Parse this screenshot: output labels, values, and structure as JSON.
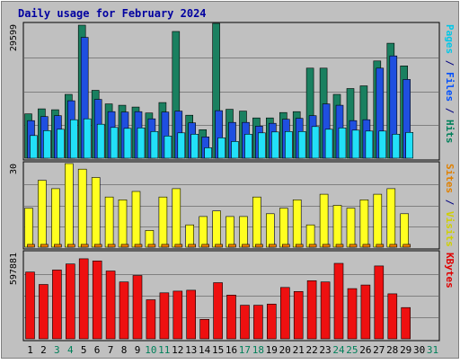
{
  "chart_data": {
    "type": "bar",
    "title": "Daily usage for February 2024",
    "x": [
      "1",
      "2",
      "3",
      "4",
      "5",
      "6",
      "7",
      "8",
      "9",
      "10",
      "11",
      "12",
      "13",
      "14",
      "15",
      "16",
      "17",
      "18",
      "19",
      "20",
      "21",
      "22",
      "23",
      "24",
      "25",
      "26",
      "27",
      "28",
      "29",
      "30",
      "31"
    ],
    "weekend_days": [
      3,
      4,
      10,
      11,
      17,
      18,
      24,
      25,
      31
    ],
    "panels": [
      {
        "id": "hits-files-pages",
        "ymax": 29599,
        "ymax_label": "29599",
        "side_label": [
          {
            "text": "Pages",
            "color": "#00c8e8"
          },
          {
            "text": " / ",
            "color": "#000080"
          },
          {
            "text": "Files",
            "color": "#0050ff"
          },
          {
            "text": " / ",
            "color": "#000080"
          },
          {
            "text": "Hits",
            "color": "#00805a"
          }
        ],
        "series": [
          {
            "name": "Hits",
            "color": "#1a8060",
            "values": [
              9800,
              10900,
              10700,
              14100,
              29400,
              15000,
              12000,
              11700,
              11300,
              10000,
              12300,
              28000,
              9500,
              6300,
              29800,
              10800,
              10400,
              8900,
              8900,
              10100,
              10300,
              19900,
              19900,
              14100,
              15400,
              16000,
              21500,
              25400,
              20400,
              0,
              0
            ]
          },
          {
            "name": "Files",
            "color": "#1f4fe0",
            "values": [
              8300,
              9200,
              9400,
              12700,
              26700,
              13000,
              10300,
              10200,
              10300,
              8700,
              10200,
              10400,
              7800,
              4700,
              10500,
              7900,
              7900,
              7100,
              7700,
              8600,
              8800,
              9400,
              12000,
              11700,
              8300,
              8500,
              19900,
              22600,
              17400,
              0,
              0
            ]
          },
          {
            "name": "Pages",
            "color": "#22e0f8",
            "values": [
              5000,
              6100,
              6400,
              8500,
              8700,
              7500,
              6800,
              6600,
              6700,
              5900,
              4900,
              5600,
              5300,
              2300,
              4500,
              3700,
              5300,
              5600,
              5800,
              5900,
              5900,
              7000,
              6400,
              6700,
              6200,
              6000,
              6000,
              5300,
              5700,
              0,
              0
            ]
          }
        ]
      },
      {
        "id": "visits-sites",
        "ymax": 30,
        "ymax_label": "30",
        "side_label": [
          {
            "text": "Sites",
            "color": "#e08000"
          },
          {
            "text": " / ",
            "color": "#000080"
          },
          {
            "text": "Visits",
            "color": "#d0d000"
          }
        ],
        "series": [
          {
            "name": "Visits",
            "color": "#ffff20",
            "values": [
              14,
              24,
              21,
              30,
              28,
              25,
              18,
              17,
              20,
              6,
              18,
              21,
              8,
              11,
              13,
              11,
              11,
              18,
              12,
              14,
              17,
              8,
              19,
              15,
              14,
              17,
              19,
              21,
              12,
              0,
              0
            ]
          },
          {
            "name": "Sites",
            "color": "#f08000",
            "values": [
              1,
              1,
              1,
              1,
              1,
              1,
              1,
              1,
              1,
              1,
              1,
              1,
              1,
              1,
              1,
              1,
              1,
              1,
              1,
              1,
              1,
              1,
              1,
              1,
              1,
              1,
              1,
              1,
              1,
              0,
              0
            ]
          }
        ]
      },
      {
        "id": "kbytes",
        "ymax": 597881,
        "ymax_label": "597881",
        "side_label": [
          {
            "text": "KBytes",
            "color": "#e00000"
          }
        ],
        "series": [
          {
            "name": "KBytes",
            "color": "#ee1010",
            "values": [
              463000,
              377000,
              477000,
              519000,
              555000,
              540000,
              470000,
              394000,
              439000,
              271000,
              319000,
              331000,
              337000,
              135000,
              389000,
              303000,
              233000,
              233000,
              241000,
              356000,
              328000,
              403000,
              394000,
              523000,
              348000,
              373000,
              505000,
              312000,
              217000,
              0,
              0
            ]
          }
        ]
      }
    ]
  }
}
